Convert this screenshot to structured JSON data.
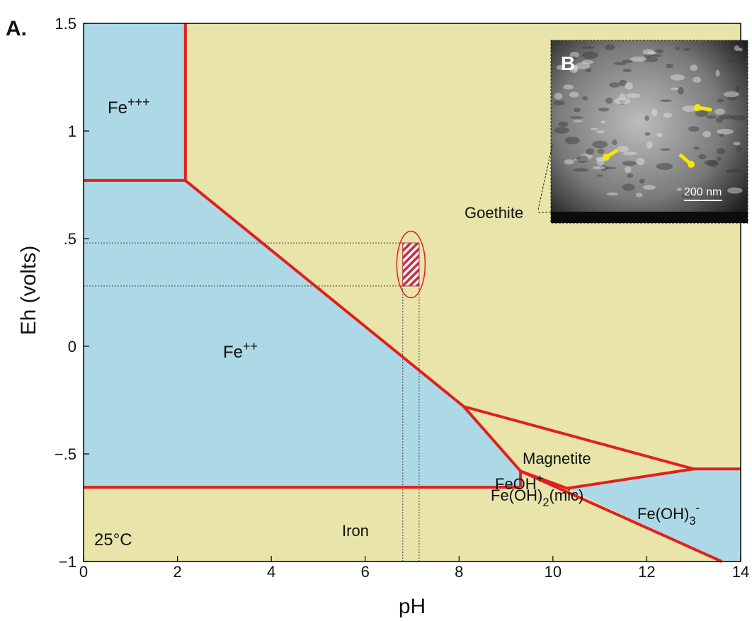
{
  "chart_data": {
    "type": "pourbaix",
    "panel_label": "A.",
    "xlabel": "pH",
    "ylabel": "Eh (volts)",
    "xlim": [
      0,
      14
    ],
    "ylim": [
      -1,
      1.5
    ],
    "xticks": [
      0,
      2,
      4,
      6,
      8,
      10,
      12,
      14
    ],
    "yticks": [
      {
        "value": -1,
        "label": "−1"
      },
      {
        "value": -0.5,
        "label": "−.5"
      },
      0,
      {
        "value": 0.5,
        "label": ".5"
      },
      1,
      1.5
    ],
    "background": "#e8e4aa",
    "regions": [
      {
        "color": "#add8e6",
        "ph": [
          0,
          2.17,
          2.17,
          0
        ],
        "eh": [
          1.5,
          1.5,
          0.77,
          0.77
        ]
      },
      {
        "color": "#add8e6",
        "ph": [
          0,
          2.17,
          8.1,
          9.31,
          9.31,
          0
        ],
        "eh": [
          0.77,
          0.77,
          -0.28,
          -0.58,
          -0.655,
          -0.655
        ]
      },
      {
        "color": "#add8e6",
        "ph": [
          10.3,
          13.0,
          14,
          14,
          13.6
        ],
        "eh": [
          -0.66,
          -0.57,
          -0.57,
          -1,
          -1
        ]
      }
    ],
    "boundaries": [
      {
        "color": "#e02020",
        "ph": [
          2.17,
          2.17
        ],
        "eh": [
          1.5,
          0.77
        ]
      },
      {
        "color": "#e02020",
        "ph": [
          0,
          2.17,
          8.1,
          9.31
        ],
        "eh": [
          0.77,
          0.77,
          -0.28,
          -0.58
        ]
      },
      {
        "color": "#e02020",
        "ph": [
          0,
          9.31
        ],
        "eh": [
          -0.655,
          -0.655
        ]
      },
      {
        "color": "#e02020",
        "ph": [
          8.1,
          13.0,
          14
        ],
        "eh": [
          -0.28,
          -0.57,
          -0.57
        ]
      },
      {
        "color": "#e02020",
        "ph": [
          9.31,
          10.3,
          13.0
        ],
        "eh": [
          -0.58,
          -0.66,
          -0.57
        ]
      },
      {
        "color": "#e02020",
        "ph": [
          9.31,
          13.6
        ],
        "eh": [
          -0.58,
          -1
        ]
      },
      {
        "color": "#e02020",
        "ph": [
          9.31,
          9.31
        ],
        "eh": [
          -0.58,
          -0.655
        ]
      }
    ],
    "highlight": {
      "color": "#c0304a",
      "ph": [
        6.8,
        7.15
      ],
      "eh": [
        0.28,
        0.48
      ]
    },
    "labels": {
      "fe3": {
        "base": "Fe",
        "sup": "+++"
      },
      "fe2": {
        "base": "Fe",
        "sup": "++"
      },
      "magnetite": "Magnetite",
      "feoh": {
        "base": "FeOH",
        "sup": "+"
      },
      "feoh2": {
        "base": "Fe(OH)",
        "sub": "2",
        "tail": "(mic)"
      },
      "feoh3": {
        "base": "Fe(OH)",
        "sub": "3",
        "sup": "-"
      },
      "iron": "Iron",
      "temperature": "25°C"
    },
    "inset": {
      "label": "B",
      "scale": "200 nm",
      "caption": "Goethite"
    }
  }
}
